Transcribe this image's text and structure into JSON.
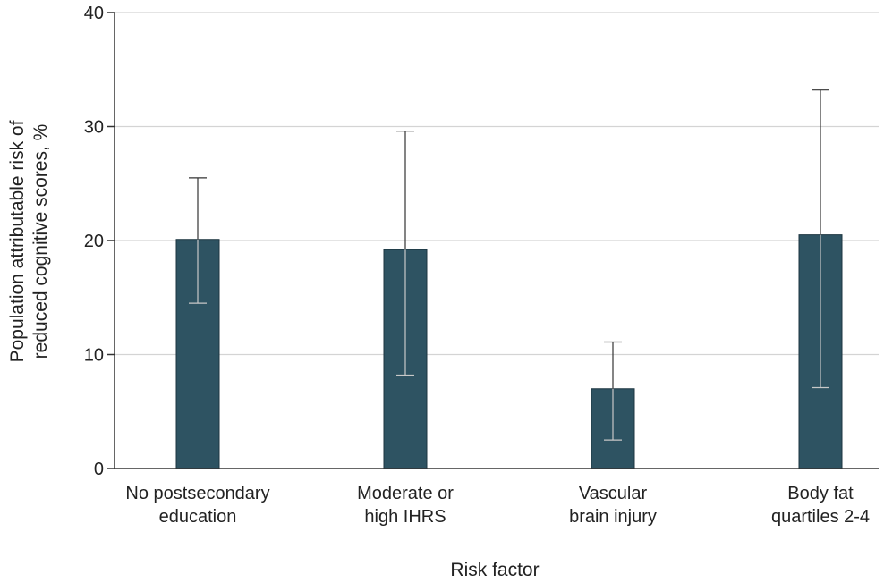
{
  "chart_data": {
    "type": "bar",
    "categories": [
      [
        "No postsecondary",
        "education"
      ],
      [
        "Moderate or",
        "high IHRS"
      ],
      [
        "Vascular",
        "brain injury"
      ],
      [
        "Body fat",
        "quartiles 2-4"
      ]
    ],
    "series": [
      {
        "values": [
          20.1,
          19.2,
          7.0,
          20.5
        ],
        "ci_lower": [
          14.5,
          8.2,
          2.5,
          7.1
        ],
        "ci_upper": [
          25.5,
          29.6,
          11.1,
          33.2
        ]
      }
    ],
    "xlabel": "Risk factor",
    "ylabel": [
      "Population attributable risk of",
      "reduced cognitive scores, %"
    ],
    "ylim": [
      0,
      40
    ],
    "yticks": [
      0,
      10,
      20,
      30,
      40
    ],
    "grid": "horizontal",
    "colors": {
      "bar": "#2e5362",
      "bar_edge": "#1c3540",
      "grid": "#d4d4d4",
      "axis": "#333333",
      "error": "#333333",
      "error_inner": "#c8c8c8"
    }
  }
}
